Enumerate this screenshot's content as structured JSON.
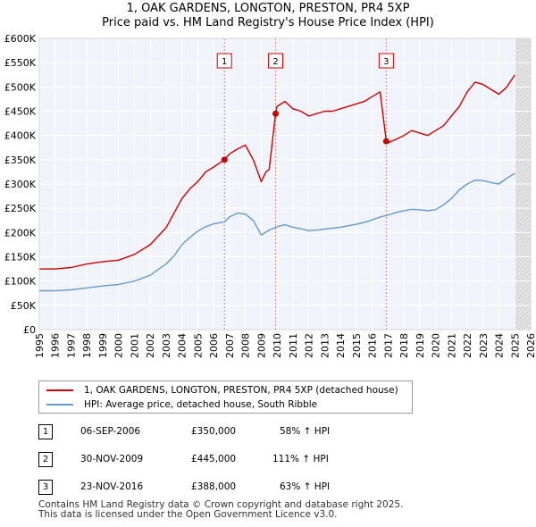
{
  "chart_data": {
    "type": "line",
    "title": "1, OAK GARDENS, LONGTON, PRESTON, PR4 5XP",
    "subtitle": "Price paid vs. HM Land Registry's House Price Index (HPI)",
    "xlim": [
      1995,
      2026
    ],
    "ylim": [
      0,
      600000
    ],
    "x_ticks": [
      1995,
      1996,
      1997,
      1998,
      1999,
      2000,
      2001,
      2002,
      2003,
      2004,
      2005,
      2006,
      2007,
      2008,
      2009,
      2010,
      2011,
      2012,
      2013,
      2014,
      2015,
      2016,
      2017,
      2018,
      2019,
      2020,
      2021,
      2022,
      2023,
      2024,
      2025,
      2026
    ],
    "x_tick_labels": [
      "1995",
      "1996",
      "1997",
      "1998",
      "1999",
      "2000",
      "2001",
      "2002",
      "2003",
      "2004",
      "2005",
      "2006",
      "2007",
      "2008",
      "2009",
      "2010",
      "2011",
      "2012",
      "2013",
      "2014",
      "2015",
      "2016",
      "2017",
      "2018",
      "2019",
      "2020",
      "2021",
      "2022",
      "2023",
      "2024",
      "2025",
      "2026"
    ],
    "y_ticks": [
      0,
      50000,
      100000,
      150000,
      200000,
      250000,
      300000,
      350000,
      400000,
      450000,
      500000,
      550000,
      600000
    ],
    "y_tick_labels": [
      "£0",
      "£50K",
      "£100K",
      "£150K",
      "£200K",
      "£250K",
      "£300K",
      "£350K",
      "£400K",
      "£450K",
      "£500K",
      "£550K",
      "£600K"
    ],
    "grid": true,
    "projection_start": 2025.0,
    "series": [
      {
        "name": "1, OAK GARDENS, LONGTON, PRESTON, PR4 5XP (detached house)",
        "color": "#cc0000",
        "x": [
          1995.0,
          1996.0,
          1997.0,
          1998.0,
          1999.0,
          2000.0,
          2001.0,
          2002.0,
          2003.0,
          2003.5,
          2004.0,
          2004.5,
          2005.0,
          2005.5,
          2006.0,
          2006.68,
          2007.0,
          2007.5,
          2008.0,
          2008.5,
          2009.0,
          2009.3,
          2009.5,
          2009.91,
          2010.0,
          2010.5,
          2011.0,
          2011.5,
          2012.0,
          2012.5,
          2013.0,
          2013.5,
          2014.0,
          2014.5,
          2015.0,
          2015.5,
          2016.0,
          2016.5,
          2016.89,
          2017.0,
          2017.5,
          2018.0,
          2018.5,
          2019.0,
          2019.5,
          2020.0,
          2020.5,
          2021.0,
          2021.5,
          2022.0,
          2022.5,
          2023.0,
          2023.5,
          2024.0,
          2024.5,
          2025.0
        ],
        "y": [
          125000,
          125000,
          128000,
          135000,
          140000,
          143000,
          155000,
          175000,
          210000,
          240000,
          270000,
          290000,
          305000,
          325000,
          335000,
          350000,
          362000,
          372000,
          380000,
          350000,
          305000,
          325000,
          330000,
          445000,
          460000,
          470000,
          455000,
          450000,
          440000,
          445000,
          450000,
          450000,
          455000,
          460000,
          465000,
          470000,
          480000,
          490000,
          388000,
          385000,
          392000,
          400000,
          410000,
          405000,
          400000,
          410000,
          420000,
          440000,
          460000,
          490000,
          510000,
          505000,
          495000,
          485000,
          500000,
          525000
        ]
      },
      {
        "name": "HPI: Average price, detached house, South Ribble",
        "color": "#6699cc",
        "x": [
          1995.0,
          1996.0,
          1997.0,
          1998.0,
          1999.0,
          2000.0,
          2001.0,
          2002.0,
          2003.0,
          2003.5,
          2004.0,
          2004.5,
          2005.0,
          2005.5,
          2006.0,
          2006.68,
          2007.0,
          2007.5,
          2008.0,
          2008.5,
          2009.0,
          2009.5,
          2010.0,
          2010.5,
          2011.0,
          2011.5,
          2012.0,
          2012.5,
          2013.0,
          2013.5,
          2014.0,
          2014.5,
          2015.0,
          2015.5,
          2016.0,
          2016.5,
          2017.0,
          2017.5,
          2018.0,
          2018.5,
          2019.0,
          2019.5,
          2020.0,
          2020.5,
          2021.0,
          2021.5,
          2022.0,
          2022.5,
          2023.0,
          2023.5,
          2024.0,
          2024.5,
          2025.0
        ],
        "y": [
          80000,
          80000,
          82000,
          86000,
          90000,
          93000,
          100000,
          112000,
          135000,
          152000,
          175000,
          190000,
          203000,
          212000,
          218000,
          222000,
          232000,
          240000,
          238000,
          225000,
          195000,
          205000,
          212000,
          216000,
          211000,
          208000,
          204000,
          205000,
          207000,
          209000,
          211000,
          214000,
          217000,
          221000,
          226000,
          232000,
          236000,
          241000,
          245000,
          248000,
          247000,
          245000,
          247000,
          257000,
          270000,
          288000,
          300000,
          308000,
          307000,
          303000,
          300000,
          312000,
          322000
        ]
      }
    ],
    "annotations": [
      {
        "label": "1",
        "x": 2006.68,
        "y": 350000
      },
      {
        "label": "2",
        "x": 2009.91,
        "y": 445000
      },
      {
        "label": "3",
        "x": 2016.89,
        "y": 388000
      }
    ]
  },
  "legend": {
    "property_label": "1, OAK GARDENS, LONGTON, PRESTON, PR4 5XP (detached house)",
    "hpi_label": "HPI: Average price, detached house, South Ribble"
  },
  "transactions": [
    {
      "num": "1",
      "date": "06-SEP-2006",
      "price": "£350,000",
      "hpi": "58% ↑ HPI"
    },
    {
      "num": "2",
      "date": "30-NOV-2009",
      "price": "£445,000",
      "hpi": "111% ↑ HPI"
    },
    {
      "num": "3",
      "date": "23-NOV-2016",
      "price": "£388,000",
      "hpi": "63% ↑ HPI"
    }
  ],
  "footer": {
    "line1": "Contains HM Land Registry data © Crown copyright and database right 2025.",
    "line2": "This data is licensed under the Open Government Licence v3.0."
  }
}
